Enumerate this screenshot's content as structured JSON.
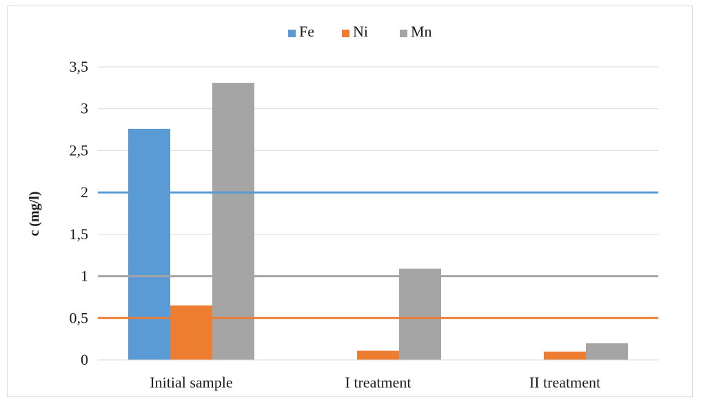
{
  "chart_data": {
    "type": "bar",
    "title": "",
    "xlabel": "",
    "ylabel": "c (mg/l)",
    "ylim": [
      0,
      3.5
    ],
    "yticks": [
      0,
      0.5,
      1,
      1.5,
      2,
      2.5,
      3,
      3.5
    ],
    "ytick_labels": [
      "0",
      "0,5",
      "1",
      "1,5",
      "2",
      "2,5",
      "3",
      "3,5"
    ],
    "grid": true,
    "legend_position": "top",
    "categories": [
      "Initial sample",
      "I treatment",
      "II treatment"
    ],
    "series": [
      {
        "name": "Fe",
        "color": "#5b9bd5",
        "values": [
          2.76,
          0,
          0
        ]
      },
      {
        "name": "Ni",
        "color": "#ed7d31",
        "values": [
          0.65,
          0.11,
          0.1
        ]
      },
      {
        "name": "Mn",
        "color": "#a5a5a5",
        "values": [
          3.31,
          1.09,
          0.2
        ]
      }
    ],
    "reference_lines": [
      {
        "series": "Fe",
        "value": 2,
        "color": "#5b9bd5"
      },
      {
        "series": "Mn",
        "value": 1,
        "color": "#a5a5a5"
      },
      {
        "series": "Ni",
        "value": 0.5,
        "color": "#ed7d31"
      }
    ]
  }
}
